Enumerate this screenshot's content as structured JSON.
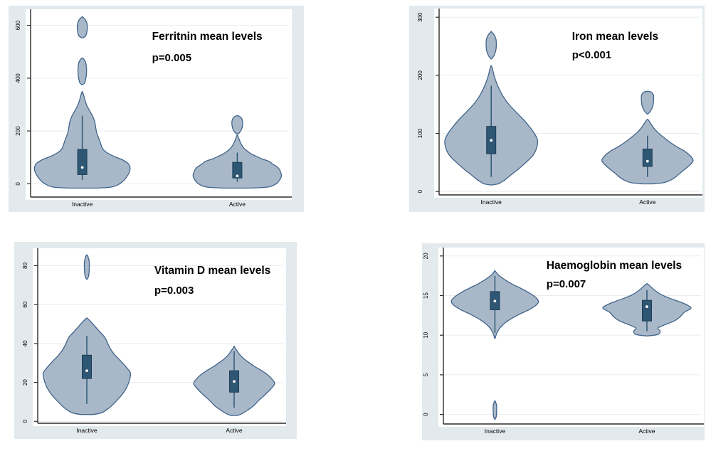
{
  "style": {
    "page_bg": "#ffffff",
    "panel_bg": "#e3eaed",
    "plot_bg": "#ffffff",
    "grid_color": "#e7edf0",
    "axis_color": "#2b2b2b",
    "violin_fill": "#a9b8c8",
    "violin_stroke": "#41648c",
    "box_fill": "#2e5774",
    "box_stroke": "#1d3c55",
    "whisker_color": "#2e5774",
    "mean_dot_color": "#ffffff",
    "text_color": "#000000"
  },
  "chart_data": [
    {
      "type": "violin",
      "title": "Ferritnin mean levels",
      "p_value": "p=0.005",
      "categories": [
        "Inactive",
        "Active"
      ],
      "ylim": [
        -50,
        650
      ],
      "yticks": [
        0,
        200,
        400,
        600
      ],
      "grid": true,
      "groups": [
        {
          "label": "Inactive",
          "center": 0.2,
          "max_halfwidth": 0.185,
          "box": {
            "q1": 35,
            "q3": 130,
            "whisker_low": 15,
            "whisker_high": 258,
            "mean": 62
          },
          "profile": [
            [
              -16,
              0.3
            ],
            [
              -12,
              0.62
            ],
            [
              0,
              0.78
            ],
            [
              15,
              0.88
            ],
            [
              35,
              0.96
            ],
            [
              55,
              1.0
            ],
            [
              75,
              0.97
            ],
            [
              90,
              0.85
            ],
            [
              105,
              0.65
            ],
            [
              120,
              0.5
            ],
            [
              135,
              0.42
            ],
            [
              155,
              0.38
            ],
            [
              175,
              0.34
            ],
            [
              195,
              0.3
            ],
            [
              215,
              0.28
            ],
            [
              235,
              0.26
            ],
            [
              255,
              0.22
            ],
            [
              275,
              0.16
            ],
            [
              295,
              0.1
            ],
            [
              315,
              0.06
            ],
            [
              335,
              0.03
            ],
            [
              348,
              0
            ]
          ],
          "islands": [
            [
              [
                375,
                0
              ],
              [
                382,
                0.05
              ],
              [
                405,
                0.08
              ],
              [
                432,
                0.09
              ],
              [
                460,
                0.07
              ],
              [
                472,
                0.03
              ],
              [
                476,
                0
              ]
            ],
            [
              [
                552,
                0
              ],
              [
                560,
                0.07
              ],
              [
                580,
                0.1
              ],
              [
                605,
                0.1
              ],
              [
                622,
                0.06
              ],
              [
                632,
                0
              ]
            ]
          ]
        },
        {
          "label": "Active",
          "center": 0.8,
          "max_halfwidth": 0.171,
          "box": {
            "q1": 22,
            "q3": 81,
            "whisker_low": 8,
            "whisker_high": 118,
            "mean": 30
          },
          "profile": [
            [
              -16,
              0.3
            ],
            [
              -12,
              0.7
            ],
            [
              0,
              0.88
            ],
            [
              15,
              0.96
            ],
            [
              30,
              1.0
            ],
            [
              45,
              0.98
            ],
            [
              60,
              0.93
            ],
            [
              75,
              0.8
            ],
            [
              85,
              0.72
            ],
            [
              95,
              0.55
            ],
            [
              105,
              0.42
            ],
            [
              115,
              0.3
            ],
            [
              125,
              0.22
            ],
            [
              135,
              0.15
            ],
            [
              150,
              0.09
            ],
            [
              165,
              0.05
            ],
            [
              178,
              0.02
            ],
            [
              184,
              0
            ]
          ],
          "islands": [
            [
              [
                189,
                0.02
              ],
              [
                196,
                0.06
              ],
              [
                208,
                0.1
              ],
              [
                222,
                0.12
              ],
              [
                238,
                0.12
              ],
              [
                250,
                0.09
              ],
              [
                256,
                0.04
              ],
              [
                258,
                0
              ]
            ]
          ]
        }
      ]
    },
    {
      "type": "violin",
      "title": "Iron mean levels",
      "p_value": "p<0.001",
      "categories": [
        "Inactive",
        "Active"
      ],
      "ylim": [
        -6,
        310
      ],
      "yticks": [
        0,
        100,
        200,
        300
      ],
      "grid": true,
      "groups": [
        {
          "label": "Inactive",
          "center": 0.2,
          "max_halfwidth": 0.178,
          "box": {
            "q1": 65,
            "q3": 112,
            "whisker_low": 25,
            "whisker_high": 182,
            "mean": 88
          },
          "profile": [
            [
              11,
              0
            ],
            [
              13,
              0.15
            ],
            [
              16,
              0.22
            ],
            [
              20,
              0.3
            ],
            [
              28,
              0.42
            ],
            [
              38,
              0.58
            ],
            [
              50,
              0.75
            ],
            [
              62,
              0.9
            ],
            [
              75,
              0.98
            ],
            [
              88,
              1.0
            ],
            [
              100,
              0.93
            ],
            [
              112,
              0.82
            ],
            [
              125,
              0.68
            ],
            [
              138,
              0.52
            ],
            [
              150,
              0.38
            ],
            [
              162,
              0.27
            ],
            [
              175,
              0.18
            ],
            [
              188,
              0.11
            ],
            [
              200,
              0.06
            ],
            [
              210,
              0.03
            ],
            [
              216,
              0
            ]
          ],
          "islands": [
            [
              [
                228,
                0
              ],
              [
                234,
                0.06
              ],
              [
                243,
                0.1
              ],
              [
                253,
                0.11
              ],
              [
                263,
                0.1
              ],
              [
                270,
                0.06
              ],
              [
                275,
                0
              ]
            ]
          ]
        },
        {
          "label": "Active",
          "center": 0.8,
          "max_halfwidth": 0.175,
          "box": {
            "q1": 43,
            "q3": 73,
            "whisker_low": 25,
            "whisker_high": 96,
            "mean": 52
          },
          "profile": [
            [
              13,
              0.1
            ],
            [
              15,
              0.35
            ],
            [
              19,
              0.5
            ],
            [
              25,
              0.62
            ],
            [
              32,
              0.72
            ],
            [
              40,
              0.85
            ],
            [
              48,
              0.96
            ],
            [
              54,
              1.0
            ],
            [
              62,
              0.93
            ],
            [
              70,
              0.8
            ],
            [
              78,
              0.62
            ],
            [
              86,
              0.47
            ],
            [
              94,
              0.34
            ],
            [
              102,
              0.22
            ],
            [
              110,
              0.13
            ],
            [
              117,
              0.07
            ],
            [
              122,
              0.03
            ],
            [
              124,
              0
            ]
          ],
          "islands": [
            [
              [
                133,
                0
              ],
              [
                139,
                0.07
              ],
              [
                148,
                0.12
              ],
              [
                158,
                0.135
              ],
              [
                166,
                0.13
              ],
              [
                171,
                0.08
              ],
              [
                172.5,
                0
              ]
            ]
          ]
        }
      ]
    },
    {
      "type": "violin",
      "title": "Vitamin D mean levels",
      "p_value": "p=0.003",
      "categories": [
        "Inactive",
        "Active"
      ],
      "ylim": [
        -1,
        87.5
      ],
      "yticks": [
        0,
        20,
        40,
        60,
        80
      ],
      "grid": true,
      "groups": [
        {
          "label": "Inactive",
          "center": 0.2,
          "max_halfwidth": 0.177,
          "box": {
            "q1": 22,
            "q3": 34,
            "whisker_low": 9,
            "whisker_high": 44,
            "mean": 26
          },
          "profile": [
            [
              3.5,
              0.15
            ],
            [
              4.5,
              0.35
            ],
            [
              7,
              0.52
            ],
            [
              10,
              0.66
            ],
            [
              14,
              0.82
            ],
            [
              18,
              0.93
            ],
            [
              22,
              0.99
            ],
            [
              25,
              1.0
            ],
            [
              28,
              0.9
            ],
            [
              31,
              0.78
            ],
            [
              34,
              0.65
            ],
            [
              37,
              0.55
            ],
            [
              40,
              0.48
            ],
            [
              43,
              0.42
            ],
            [
              46,
              0.3
            ],
            [
              49,
              0.18
            ],
            [
              51.5,
              0.08
            ],
            [
              53,
              0
            ]
          ],
          "islands": [
            [
              [
                73,
                0
              ],
              [
                74.5,
                0.04
              ],
              [
                78,
                0.055
              ],
              [
                82,
                0.055
              ],
              [
                84.5,
                0.03
              ],
              [
                85.5,
                0
              ]
            ]
          ]
        },
        {
          "label": "Active",
          "center": 0.8,
          "max_halfwidth": 0.165,
          "box": {
            "q1": 15,
            "q3": 26,
            "whisker_low": 7,
            "whisker_high": 36,
            "mean": 20.5
          },
          "profile": [
            [
              3,
              0.08
            ],
            [
              4,
              0.2
            ],
            [
              6,
              0.35
            ],
            [
              8,
              0.48
            ],
            [
              11,
              0.62
            ],
            [
              14,
              0.78
            ],
            [
              17,
              0.92
            ],
            [
              19.5,
              1.0
            ],
            [
              22,
              0.92
            ],
            [
              24,
              0.82
            ],
            [
              26,
              0.68
            ],
            [
              28,
              0.52
            ],
            [
              30,
              0.38
            ],
            [
              32,
              0.25
            ],
            [
              34,
              0.15
            ],
            [
              36,
              0.08
            ],
            [
              37.5,
              0.03
            ],
            [
              38.5,
              0
            ]
          ],
          "islands": []
        }
      ]
    },
    {
      "type": "violin",
      "title": "Haemoglobin mean levels",
      "p_value": "p=0.007",
      "categories": [
        "Inactive",
        "Active"
      ],
      "ylim": [
        -1.2,
        20.7
      ],
      "yticks": [
        0,
        5,
        10,
        15,
        20
      ],
      "grid": true,
      "groups": [
        {
          "label": "Inactive",
          "center": 0.2,
          "max_halfwidth": 0.169,
          "box": {
            "q1": 13.2,
            "q3": 15.5,
            "whisker_low": 10.3,
            "whisker_high": 17.5,
            "mean": 14.3
          },
          "profile": [
            [
              9.6,
              0
            ],
            [
              10.2,
              0.04
            ],
            [
              10.8,
              0.1
            ],
            [
              11.4,
              0.2
            ],
            [
              12.0,
              0.35
            ],
            [
              12.6,
              0.55
            ],
            [
              13.2,
              0.78
            ],
            [
              13.8,
              0.95
            ],
            [
              14.3,
              1.0
            ],
            [
              14.8,
              0.93
            ],
            [
              15.3,
              0.8
            ],
            [
              15.9,
              0.6
            ],
            [
              16.5,
              0.38
            ],
            [
              17.1,
              0.2
            ],
            [
              17.6,
              0.08
            ],
            [
              18.1,
              0
            ]
          ],
          "islands": [
            [
              [
                -0.6,
                0
              ],
              [
                -0.3,
                0.03
              ],
              [
                0.4,
                0.04
              ],
              [
                1.1,
                0.04
              ],
              [
                1.5,
                0.02
              ],
              [
                1.7,
                0
              ]
            ]
          ]
        },
        {
          "label": "Active",
          "center": 0.79,
          "max_halfwidth": 0.171,
          "box": {
            "q1": 11.8,
            "q3": 14.4,
            "whisker_low": 10.5,
            "whisker_high": 15.7,
            "mean": 13.6
          },
          "profile": [
            [
              9.9,
              0
            ],
            [
              10.1,
              0.25
            ],
            [
              10.5,
              0.3
            ],
            [
              10.9,
              0.25
            ],
            [
              11.3,
              0.4
            ],
            [
              11.8,
              0.62
            ],
            [
              12.3,
              0.75
            ],
            [
              12.9,
              0.85
            ],
            [
              13.4,
              1.0
            ],
            [
              13.8,
              0.92
            ],
            [
              14.2,
              0.75
            ],
            [
              14.7,
              0.5
            ],
            [
              15.2,
              0.3
            ],
            [
              15.8,
              0.15
            ],
            [
              16.3,
              0.05
            ],
            [
              16.5,
              0
            ]
          ],
          "islands": []
        }
      ]
    }
  ]
}
